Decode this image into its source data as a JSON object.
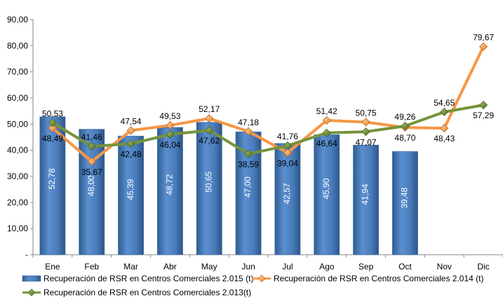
{
  "chart_data": {
    "type": "bar",
    "categories": [
      "Ene",
      "Feb",
      "Mar",
      "Abr",
      "May",
      "Jun",
      "Jul",
      "Ago",
      "Sep",
      "Oct",
      "Nov",
      "Dic"
    ],
    "ylim": [
      0,
      90
    ],
    "yticks": [
      "-",
      "10,00",
      "20,00",
      "30,00",
      "40,00",
      "50,00",
      "60,00",
      "70,00",
      "80,00",
      "90,00"
    ],
    "grid": false,
    "legend_position": "bottom",
    "series": [
      {
        "name": "Recuperación de RSR en Centros Comerciales 2.015 (t)",
        "kind": "bar",
        "color": "#4f81bd",
        "values": [
          52.78,
          48.0,
          45.39,
          48.72,
          50.65,
          47.0,
          42.57,
          45.9,
          41.94,
          39.48,
          null,
          null
        ],
        "labels": [
          "52,78",
          "48,00",
          "45,39",
          "48,72",
          "50,65",
          "47,00",
          "42,57",
          "45,90",
          "41,94",
          "39,48",
          null,
          null
        ]
      },
      {
        "name": "Recuperación de RSR en Centros Comerciales 2.014 (t)",
        "kind": "line",
        "color": "#f79646",
        "values": [
          48.49,
          35.67,
          47.54,
          49.53,
          52.17,
          47.18,
          39.04,
          51.42,
          50.75,
          48.7,
          48.43,
          79.67
        ],
        "labels": [
          "48,49",
          "35,67",
          "47,54",
          "49,53",
          "52,17",
          "47,18",
          "39,04",
          "51,42",
          "50,75",
          "48,70",
          "48,43",
          "79,67"
        ]
      },
      {
        "name": "Recuperación de RSR en Centros Comerciales 2.013(t)",
        "kind": "line",
        "color": "#77933c",
        "values": [
          50.53,
          41.46,
          42.48,
          46.04,
          47.62,
          38.59,
          41.76,
          46.64,
          47.07,
          49.26,
          54.65,
          57.29
        ],
        "labels": [
          "50,53",
          "41,46",
          "42,48",
          "46,04",
          "47,62",
          "38,59",
          "41,76",
          "46,64",
          "47,07",
          "49,26",
          "54,65",
          "57,29"
        ]
      }
    ]
  }
}
